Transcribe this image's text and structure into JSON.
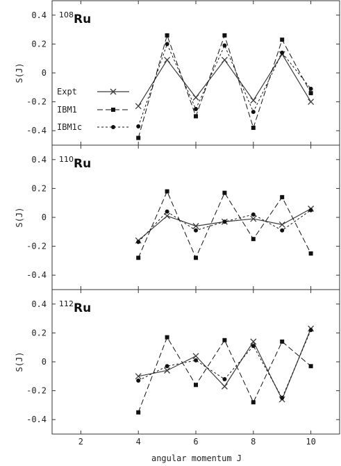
{
  "chart_data": {
    "type": "line",
    "xlabel": "angular momentum J",
    "ylabel": "S(J)",
    "xlim": [
      1,
      11
    ],
    "ylim": [
      -0.5,
      0.5
    ],
    "x_ticks": [
      2,
      4,
      6,
      8,
      10
    ],
    "y_ticks": [
      0.4,
      0.2,
      0,
      -0.2,
      -0.4
    ],
    "legend_position": "left (top panel)",
    "legend": [
      {
        "label": "Expt",
        "style": "solid",
        "marker": "cross",
        "color": "#444444"
      },
      {
        "label": "IBM1",
        "style": "dashed",
        "marker": "square",
        "color": "#111111"
      },
      {
        "label": "IBM1c",
        "style": "dotted",
        "marker": "circle",
        "color": "#111111"
      }
    ],
    "panels": [
      {
        "mass": "108",
        "element": "Ru",
        "x": [
          4,
          5,
          6,
          7,
          8,
          9,
          10
        ],
        "series": [
          {
            "name": "Expt",
            "values": [
              -0.23,
              0.09,
              -0.17,
              0.09,
              -0.19,
              0.13,
              -0.2
            ]
          },
          {
            "name": "IBM1",
            "values": [
              -0.45,
              0.26,
              -0.3,
              0.26,
              -0.38,
              0.23,
              -0.14
            ]
          },
          {
            "name": "IBM1c",
            "values": [
              -0.37,
              0.2,
              -0.25,
              0.19,
              -0.27,
              0.14,
              -0.11
            ]
          }
        ]
      },
      {
        "mass": "110",
        "element": "Ru",
        "x": [
          4,
          5,
          6,
          7,
          8,
          9,
          10
        ],
        "series": [
          {
            "name": "Expt",
            "values": [
              -0.16,
              0.01,
              -0.06,
              -0.03,
              -0.01,
              -0.05,
              0.06
            ]
          },
          {
            "name": "IBM1",
            "values": [
              -0.28,
              0.18,
              -0.28,
              0.17,
              -0.15,
              0.14,
              -0.25
            ]
          },
          {
            "name": "IBM1c",
            "values": [
              -0.17,
              0.04,
              -0.09,
              -0.03,
              0.02,
              -0.09,
              0.05
            ]
          }
        ]
      },
      {
        "mass": "112",
        "element": "Ru",
        "x": [
          4,
          5,
          6,
          7,
          8,
          9,
          10
        ],
        "series": [
          {
            "name": "Expt",
            "values": [
              -0.1,
              -0.06,
              0.04,
              -0.17,
              0.14,
              -0.26,
              0.23
            ]
          },
          {
            "name": "IBM1",
            "values": [
              -0.35,
              0.17,
              -0.16,
              0.15,
              -0.28,
              0.14,
              -0.03
            ]
          },
          {
            "name": "IBM1c",
            "values": [
              -0.13,
              -0.03,
              0.01,
              -0.12,
              0.11,
              -0.25,
              0.22
            ]
          }
        ]
      }
    ]
  }
}
